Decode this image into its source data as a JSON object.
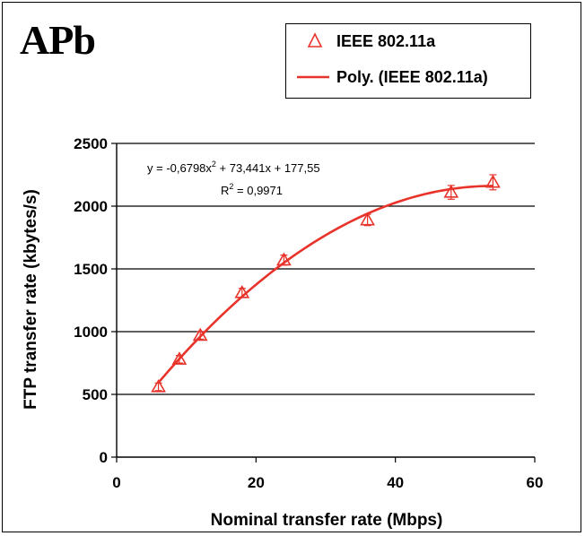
{
  "panel_label": "APb",
  "legend": [
    {
      "label": "IEEE 802.11a",
      "marker": "triangle-icon"
    },
    {
      "label": "Poly. (IEEE 802.11a)",
      "marker": "line"
    }
  ],
  "colors": {
    "series": "#e8332a",
    "grid": "#000000",
    "frame": "#000000"
  },
  "chart_data": {
    "type": "scatter",
    "title": "",
    "xlabel": "Nominal transfer rate (Mbps)",
    "ylabel": "FTP transfer rate (kbytes/s)",
    "xlim": [
      0,
      60
    ],
    "ylim": [
      0,
      2500
    ],
    "xticks": [
      0,
      20,
      40,
      60
    ],
    "yticks": [
      0,
      500,
      1000,
      1500,
      2000,
      2500
    ],
    "grid": "horizontal",
    "legend_position": "top-right",
    "series": [
      {
        "name": "IEEE 802.11a",
        "marker": "triangle",
        "x": [
          6,
          9,
          12,
          18,
          24,
          36,
          48,
          54
        ],
        "y": [
          560,
          780,
          970,
          1310,
          1570,
          1890,
          2110,
          2190
        ],
        "error": [
          30,
          30,
          30,
          35,
          40,
          45,
          55,
          60
        ]
      }
    ],
    "trendline": {
      "name": "Poly. (IEEE 802.11a)",
      "coefficients": [
        -0.6798,
        73.441,
        177.55
      ],
      "x_range": [
        6,
        54
      ],
      "equation_text": "y = -0,6798x",
      "equation_sup": "2",
      "equation_rest": " + 73,441x + 177,55",
      "r2_prefix": "R",
      "r2_sup": "2",
      "r2_rest": " = 0,9971"
    }
  }
}
